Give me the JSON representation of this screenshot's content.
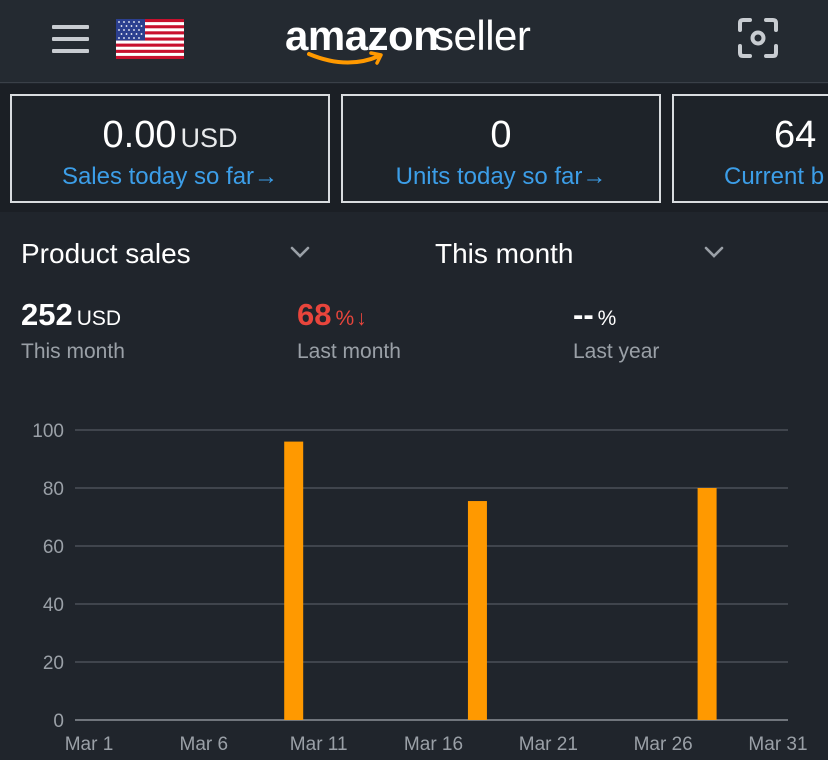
{
  "header": {
    "menu_icon": "hamburger-menu-icon",
    "flag_icon": "us-flag-icon",
    "logo_word1": "amazon",
    "logo_word2": "seller",
    "scan_icon": "camera-scan-icon"
  },
  "cards": [
    {
      "value": "0.00",
      "unit": "USD",
      "link": "Sales today so far",
      "arrow": "→"
    },
    {
      "value": "0",
      "unit": "",
      "link": "Units today so far",
      "arrow": "→"
    },
    {
      "value": "64",
      "unit": "",
      "link": "Current b",
      "arrow": ""
    }
  ],
  "filters": {
    "metric_select": "Product sales",
    "period_select": "This month"
  },
  "metrics": {
    "this_month": {
      "value": "252",
      "unit": "USD",
      "label": "This month"
    },
    "last_month": {
      "value": "68",
      "unit": "%",
      "arrow": "↓",
      "label": "Last month"
    },
    "last_year": {
      "value": "--",
      "unit": "%",
      "label": "Last year"
    }
  },
  "colors": {
    "bar": "#ff9900",
    "link": "#3c9ee8",
    "negative": "#e8453c"
  },
  "chart_data": {
    "type": "bar",
    "x": [
      "Mar 1",
      "Mar 2",
      "Mar 3",
      "Mar 4",
      "Mar 5",
      "Mar 6",
      "Mar 7",
      "Mar 8",
      "Mar 9",
      "Mar 10",
      "Mar 11",
      "Mar 12",
      "Mar 13",
      "Mar 14",
      "Mar 15",
      "Mar 16",
      "Mar 17",
      "Mar 18",
      "Mar 19",
      "Mar 20",
      "Mar 21",
      "Mar 22",
      "Mar 23",
      "Mar 24",
      "Mar 25",
      "Mar 26",
      "Mar 27",
      "Mar 28",
      "Mar 29",
      "Mar 30",
      "Mar 31"
    ],
    "bars": [
      {
        "x": "Mar 10",
        "value": 96
      },
      {
        "x": "Mar 18",
        "value": 75.5
      },
      {
        "x": "Mar 28",
        "value": 80
      }
    ],
    "xticks": [
      "Mar 1",
      "Mar 6",
      "Mar 11",
      "Mar 16",
      "Mar 21",
      "Mar 26",
      "Mar 31"
    ],
    "yticks": [
      "0",
      "20",
      "40",
      "60",
      "80",
      "100"
    ],
    "ylim": [
      0,
      100
    ],
    "grid": true
  }
}
